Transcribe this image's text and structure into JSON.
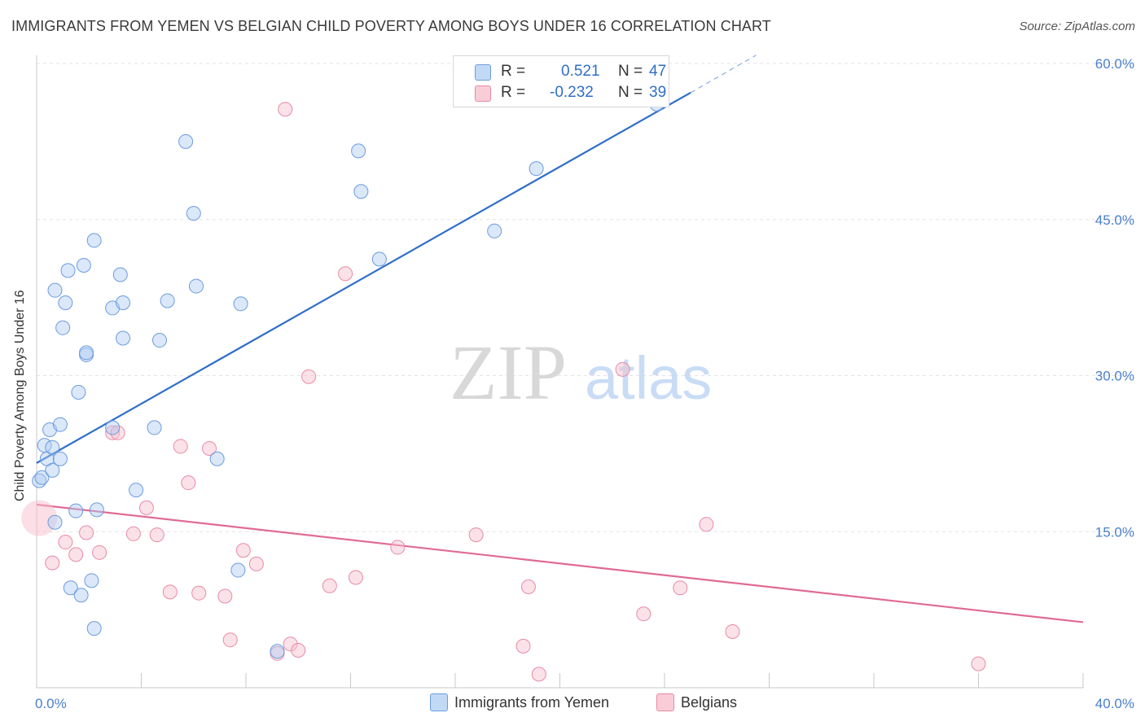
{
  "header": {
    "title": "IMMIGRANTS FROM YEMEN VS BELGIAN CHILD POVERTY AMONG BOYS UNDER 16 CORRELATION CHART",
    "source": "Source: ZipAtlas.com"
  },
  "watermark": {
    "zip": "ZIP",
    "atlas": "atlas"
  },
  "legend": {
    "r_label": "R =",
    "n_label": "N =",
    "series": [
      {
        "name": "Immigrants from Yemen",
        "r": "0.521",
        "n": "47",
        "color": "#a9c8f0",
        "stroke": "#6b9be0"
      },
      {
        "name": "Belgians",
        "r": "-0.232",
        "n": "39",
        "color": "#f6bccc",
        "stroke": "#e88aa6"
      }
    ]
  },
  "chart_data": {
    "type": "scatter",
    "title": "IMMIGRANTS FROM YEMEN VS BELGIAN CHILD POVERTY AMONG BOYS UNDER 16 CORRELATION CHART",
    "xlabel": "",
    "ylabel": "Child Poverty Among Boys Under 16",
    "xlim": [
      0,
      40
    ],
    "ylim": [
      0,
      60
    ],
    "x_tick_labels": [
      "0.0%",
      "40.0%"
    ],
    "y_ticks": [
      15,
      30,
      45,
      60
    ],
    "y_tick_labels": [
      "15.0%",
      "30.0%",
      "45.0%",
      "60.0%"
    ],
    "grid": true,
    "legend_position": "top-center",
    "series": [
      {
        "name": "Immigrants from Yemen",
        "color": "#6b9be0",
        "trend": {
          "x": [
            0,
            25
          ],
          "y": [
            21.6,
            57.2
          ],
          "dashed_to": [
            27.5,
            60.8
          ]
        },
        "points": [
          [
            0.1,
            19.9
          ],
          [
            0.2,
            20.2
          ],
          [
            0.3,
            23.3
          ],
          [
            0.4,
            22.0
          ],
          [
            0.5,
            24.8
          ],
          [
            0.6,
            23.1
          ],
          [
            0.6,
            20.9
          ],
          [
            0.7,
            15.9
          ],
          [
            0.7,
            38.2
          ],
          [
            0.9,
            25.3
          ],
          [
            0.9,
            22.0
          ],
          [
            1.0,
            34.6
          ],
          [
            1.1,
            37.0
          ],
          [
            1.2,
            40.1
          ],
          [
            1.3,
            9.6
          ],
          [
            1.5,
            17.0
          ],
          [
            1.6,
            28.4
          ],
          [
            1.7,
            8.9
          ],
          [
            1.8,
            40.6
          ],
          [
            1.9,
            32.0
          ],
          [
            1.9,
            32.2
          ],
          [
            2.1,
            10.3
          ],
          [
            2.2,
            43.0
          ],
          [
            2.2,
            5.7
          ],
          [
            2.3,
            17.1
          ],
          [
            2.9,
            25.0
          ],
          [
            2.9,
            36.5
          ],
          [
            3.2,
            39.7
          ],
          [
            3.3,
            33.6
          ],
          [
            3.3,
            37.0
          ],
          [
            3.8,
            19.0
          ],
          [
            4.5,
            25.0
          ],
          [
            4.7,
            33.4
          ],
          [
            5.0,
            37.2
          ],
          [
            5.7,
            52.5
          ],
          [
            6.0,
            45.6
          ],
          [
            6.1,
            38.6
          ],
          [
            6.9,
            22.0
          ],
          [
            7.7,
            11.3
          ],
          [
            7.8,
            36.9
          ],
          [
            9.2,
            3.5
          ],
          [
            12.3,
            51.6
          ],
          [
            12.4,
            47.7
          ],
          [
            13.1,
            41.2
          ],
          [
            17.5,
            43.9
          ],
          [
            19.1,
            49.9
          ],
          [
            23.7,
            56.1
          ]
        ]
      },
      {
        "name": "Belgians",
        "color": "#e88aa6",
        "trend": {
          "x": [
            0,
            40
          ],
          "y": [
            17.6,
            6.3
          ]
        },
        "points": [
          [
            0.1,
            16.3
          ],
          [
            0.6,
            12.0
          ],
          [
            1.1,
            14.0
          ],
          [
            1.5,
            12.8
          ],
          [
            1.9,
            14.9
          ],
          [
            2.4,
            13.0
          ],
          [
            2.9,
            24.5
          ],
          [
            3.1,
            24.5
          ],
          [
            3.7,
            14.8
          ],
          [
            4.2,
            17.3
          ],
          [
            4.6,
            14.7
          ],
          [
            5.1,
            9.2
          ],
          [
            5.5,
            23.2
          ],
          [
            5.8,
            19.7
          ],
          [
            6.2,
            9.1
          ],
          [
            6.6,
            23.0
          ],
          [
            7.2,
            8.8
          ],
          [
            7.4,
            4.6
          ],
          [
            7.9,
            13.2
          ],
          [
            8.4,
            11.9
          ],
          [
            9.2,
            3.3
          ],
          [
            9.5,
            55.6
          ],
          [
            9.7,
            4.2
          ],
          [
            10.0,
            3.6
          ],
          [
            10.4,
            29.9
          ],
          [
            11.2,
            9.8
          ],
          [
            11.8,
            39.8
          ],
          [
            12.2,
            10.6
          ],
          [
            13.8,
            13.5
          ],
          [
            16.8,
            14.7
          ],
          [
            18.6,
            4.0
          ],
          [
            18.8,
            9.7
          ],
          [
            19.2,
            1.3
          ],
          [
            22.4,
            30.6
          ],
          [
            23.2,
            7.1
          ],
          [
            24.6,
            9.6
          ],
          [
            25.6,
            15.7
          ],
          [
            26.6,
            5.4
          ],
          [
            36.0,
            2.3
          ]
        ]
      }
    ]
  }
}
